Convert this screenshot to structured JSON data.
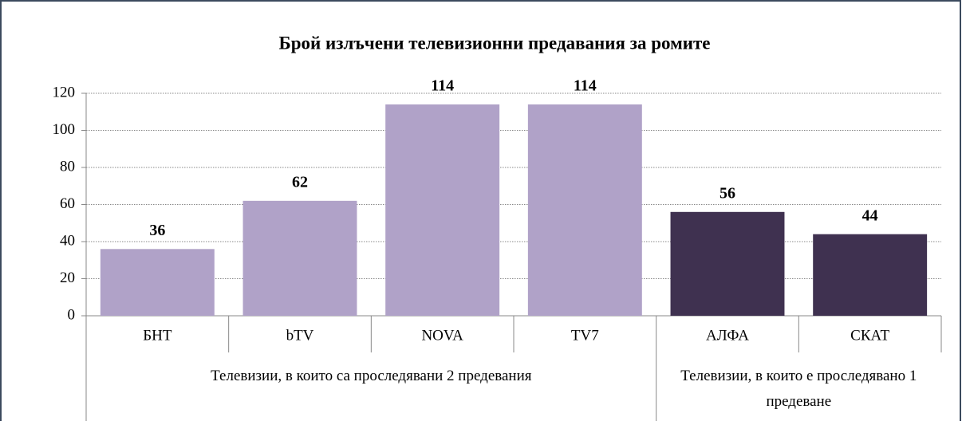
{
  "chart_data": {
    "type": "bar",
    "title": "Брой излъчени телевизионни предавания за ромите",
    "groups": [
      {
        "name": "Телевизии, в които са проследявани 2 предевания",
        "color": "#b0a2c8",
        "categories": [
          "БНТ",
          "bTV",
          "NOVA",
          "TV7"
        ],
        "values": [
          36,
          62,
          114,
          114
        ]
      },
      {
        "name": "Телевизии, в които е проследявано 1 предеване",
        "color": "#3f3150",
        "categories": [
          "АЛФА",
          "СКАТ"
        ],
        "values": [
          56,
          44
        ]
      }
    ],
    "ylim": [
      0,
      120
    ],
    "yticks": [
      0,
      20,
      40,
      60,
      80,
      100,
      120
    ],
    "grid": true
  }
}
